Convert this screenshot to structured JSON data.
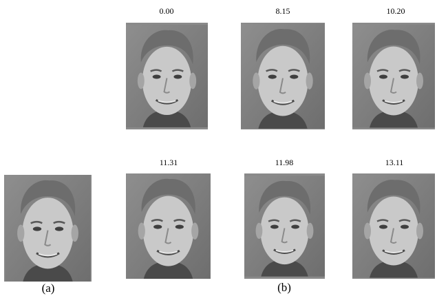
{
  "query": {
    "caption": "(a)"
  },
  "results": {
    "caption": "(b)",
    "items": [
      {
        "distance": "0.00"
      },
      {
        "distance": "8.15"
      },
      {
        "distance": "10.20"
      },
      {
        "distance": "11.31"
      },
      {
        "distance": "11.98"
      },
      {
        "distance": "13.11"
      }
    ]
  }
}
